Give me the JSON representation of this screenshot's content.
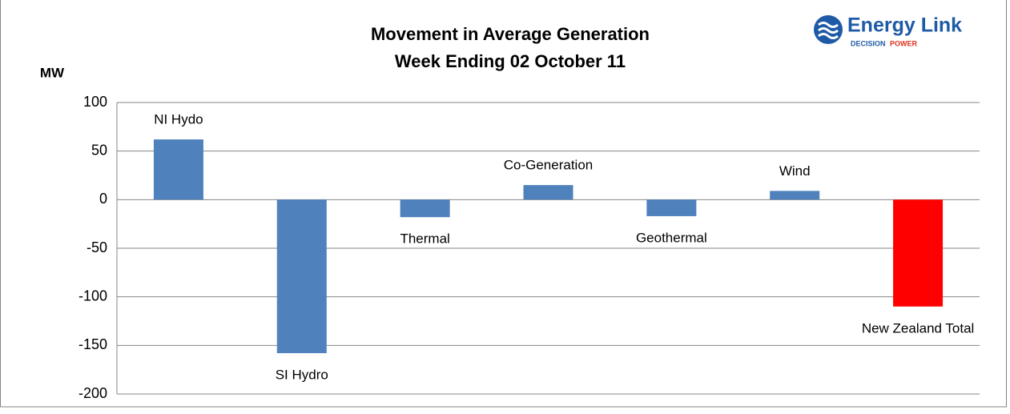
{
  "chart_data": {
    "type": "bar",
    "title": "Movement in Average Generation",
    "subtitle": "Week Ending 02 October 11",
    "y_label": "MW",
    "logo": {
      "name": "Energy Link",
      "tagline_a": "DECISION",
      "tagline_b": "POWER"
    },
    "categories": [
      "NI Hydo",
      "SI Hydro",
      "Thermal",
      "Co-Generation",
      "Geothermal",
      "Wind",
      "New Zealand Total"
    ],
    "values": [
      62,
      -158,
      -18,
      15,
      -17,
      9,
      -110
    ],
    "colors": [
      "#4f81bd",
      "#4f81bd",
      "#4f81bd",
      "#4f81bd",
      "#4f81bd",
      "#4f81bd",
      "#ff0000"
    ],
    "ylim": [
      -200,
      100
    ],
    "yticks": [
      100,
      50,
      0,
      -50,
      -100,
      -150,
      -200
    ],
    "grid": true
  }
}
